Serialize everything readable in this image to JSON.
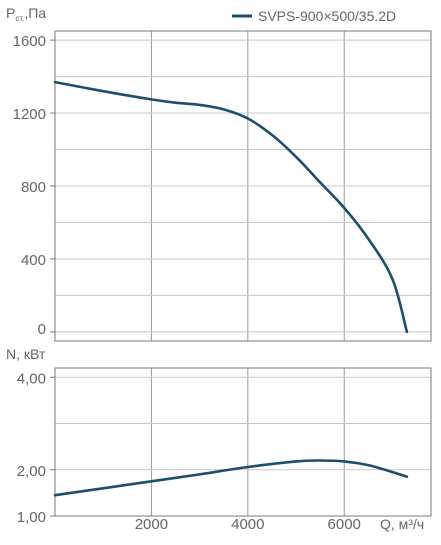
{
  "legend": {
    "label": "SVPS-900×500/35.2D",
    "color": "#1b4f6b",
    "placement": "top-right"
  },
  "chart_data": [
    {
      "type": "line",
      "ylabel_main": "P",
      "ylabel_sub": "ст.",
      "ylabel_unit": ",Па",
      "xlim": [
        0,
        7800
      ],
      "ylim": [
        -50,
        1650
      ],
      "xgrid": [
        2000,
        4000,
        6000
      ],
      "yticks": [
        1600,
        1200,
        800,
        400,
        0
      ],
      "ytick_labels": [
        "1600",
        "1200",
        "800",
        "400",
        "0"
      ],
      "ygrid_minor": [
        1400,
        1000,
        600,
        200
      ],
      "grid": true,
      "series": [
        {
          "name": "SVPS-900×500/35.2D",
          "color": "#1b4f6b",
          "x": [
            0,
            1000,
            2000,
            2500,
            3000,
            3500,
            4000,
            4500,
            5000,
            5500,
            6000,
            6500,
            7000,
            7300
          ],
          "y": [
            1370,
            1320,
            1275,
            1257,
            1245,
            1220,
            1170,
            1080,
            960,
            820,
            680,
            510,
            290,
            0
          ]
        }
      ]
    },
    {
      "type": "line",
      "ylabel": "N, кВт",
      "xlabel": "Q, м³/ч",
      "xlim": [
        0,
        7800
      ],
      "ylim": [
        1.0,
        4.2
      ],
      "xticks": [
        2000,
        4000,
        6000
      ],
      "xtick_labels": [
        "2000",
        "4000",
        "6000"
      ],
      "yticks": [
        4.0,
        2.0,
        1.0
      ],
      "ytick_labels": [
        "4,00",
        "2,00",
        "1,00"
      ],
      "ygrid_minor": [
        3.0
      ],
      "grid": true,
      "series": [
        {
          "name": "SVPS-900×500/35.2D",
          "color": "#1b4f6b",
          "x": [
            0,
            1000,
            2000,
            3000,
            4000,
            5000,
            5500,
            6000,
            6500,
            7000,
            7300
          ],
          "y": [
            1.45,
            1.6,
            1.75,
            1.9,
            2.06,
            2.18,
            2.2,
            2.18,
            2.1,
            1.95,
            1.85
          ]
        }
      ]
    }
  ]
}
